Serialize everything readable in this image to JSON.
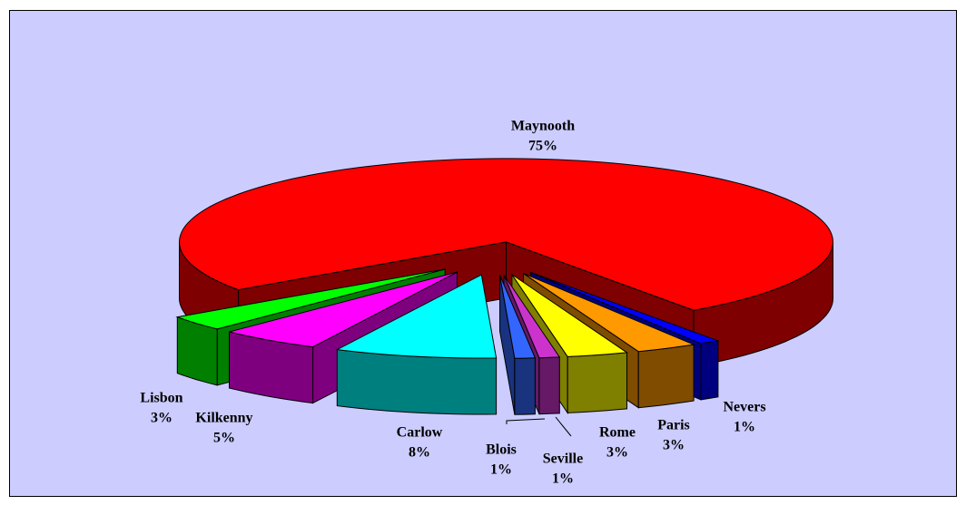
{
  "chart_data": {
    "type": "pie3d",
    "categories": [
      "Lisbon",
      "Kilkenny",
      "Carlow",
      "Blois",
      "Seville",
      "Rome",
      "Paris",
      "Nevers",
      "Maynooth"
    ],
    "values": [
      3,
      5,
      8,
      1,
      1,
      3,
      3,
      1,
      75
    ],
    "value_labels": [
      "3%",
      "5%",
      "8%",
      "1%",
      "1%",
      "3%",
      "3%",
      "1%",
      "75%"
    ],
    "colors": [
      "#00ff00",
      "#ff00ff",
      "#00ffff",
      "#3366ff",
      "#cc33cc",
      "#ffff00",
      "#ff9900",
      "#0000ff",
      "#ff0000"
    ],
    "exploded": true
  }
}
